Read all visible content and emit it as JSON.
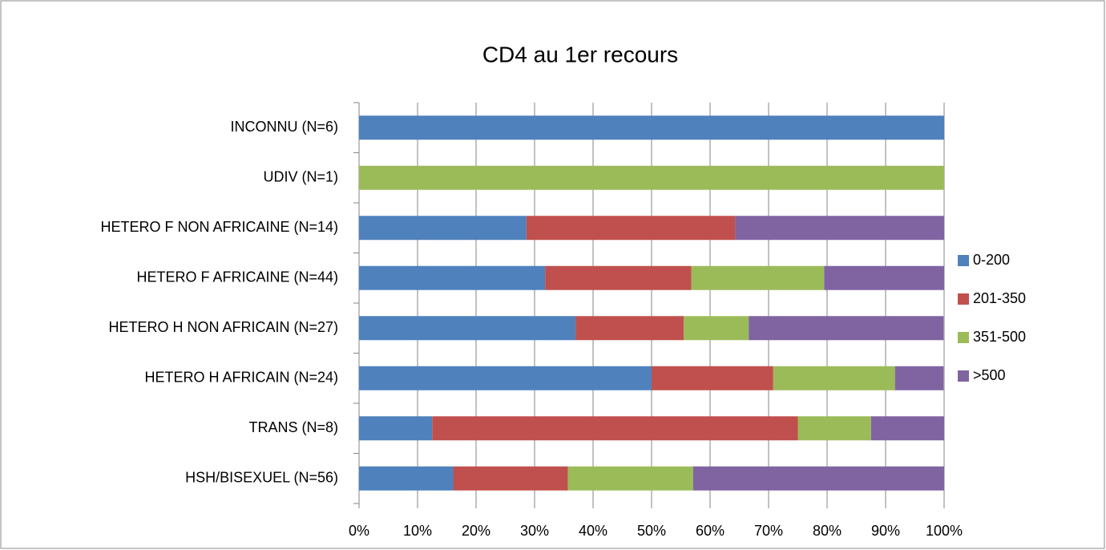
{
  "chart_data": {
    "type": "stacked_bar_horizontal",
    "title": "CD4 au 1er recours",
    "categories": [
      "INCONNU (N=6)",
      "UDIV (N=1)",
      "HETERO F NON AFRICAINE (N=14)",
      "HETERO F AFRICAINE (N=44)",
      "HETERO H NON AFRICAIN (N=27)",
      "HETERO H AFRICAIN (N=24)",
      "TRANS (N=8)",
      "HSH/BISEXUEL (N=56)"
    ],
    "series": [
      {
        "name": "0-200",
        "color": "#4f81bd",
        "values": [
          100,
          0,
          28.6,
          31.8,
          37.0,
          50,
          12.5,
          16.1
        ]
      },
      {
        "name": "201-350",
        "color": "#c0504d",
        "values": [
          0,
          0,
          35.7,
          25.0,
          18.5,
          20.8,
          62.5,
          19.6
        ]
      },
      {
        "name": "351-500",
        "color": "#9bbb59",
        "values": [
          0,
          100,
          0,
          22.7,
          11.1,
          20.8,
          12.5,
          21.4
        ]
      },
      {
        "name": ">500",
        "color": "#8064a2",
        "values": [
          0,
          0,
          35.7,
          20.5,
          33.3,
          8.3,
          12.5,
          42.9
        ]
      }
    ],
    "xlim": [
      0,
      100
    ],
    "xticks": [
      {
        "value": 0,
        "label": "0%"
      },
      {
        "value": 10,
        "label": "10%"
      },
      {
        "value": 20,
        "label": "20%"
      },
      {
        "value": 30,
        "label": "30%"
      },
      {
        "value": 40,
        "label": "40%"
      },
      {
        "value": 50,
        "label": "50%"
      },
      {
        "value": 60,
        "label": "60%"
      },
      {
        "value": 70,
        "label": "70%"
      },
      {
        "value": 80,
        "label": "80%"
      },
      {
        "value": 90,
        "label": "90%"
      },
      {
        "value": 100,
        "label": "100%"
      }
    ],
    "grid": true,
    "legend": "right"
  }
}
